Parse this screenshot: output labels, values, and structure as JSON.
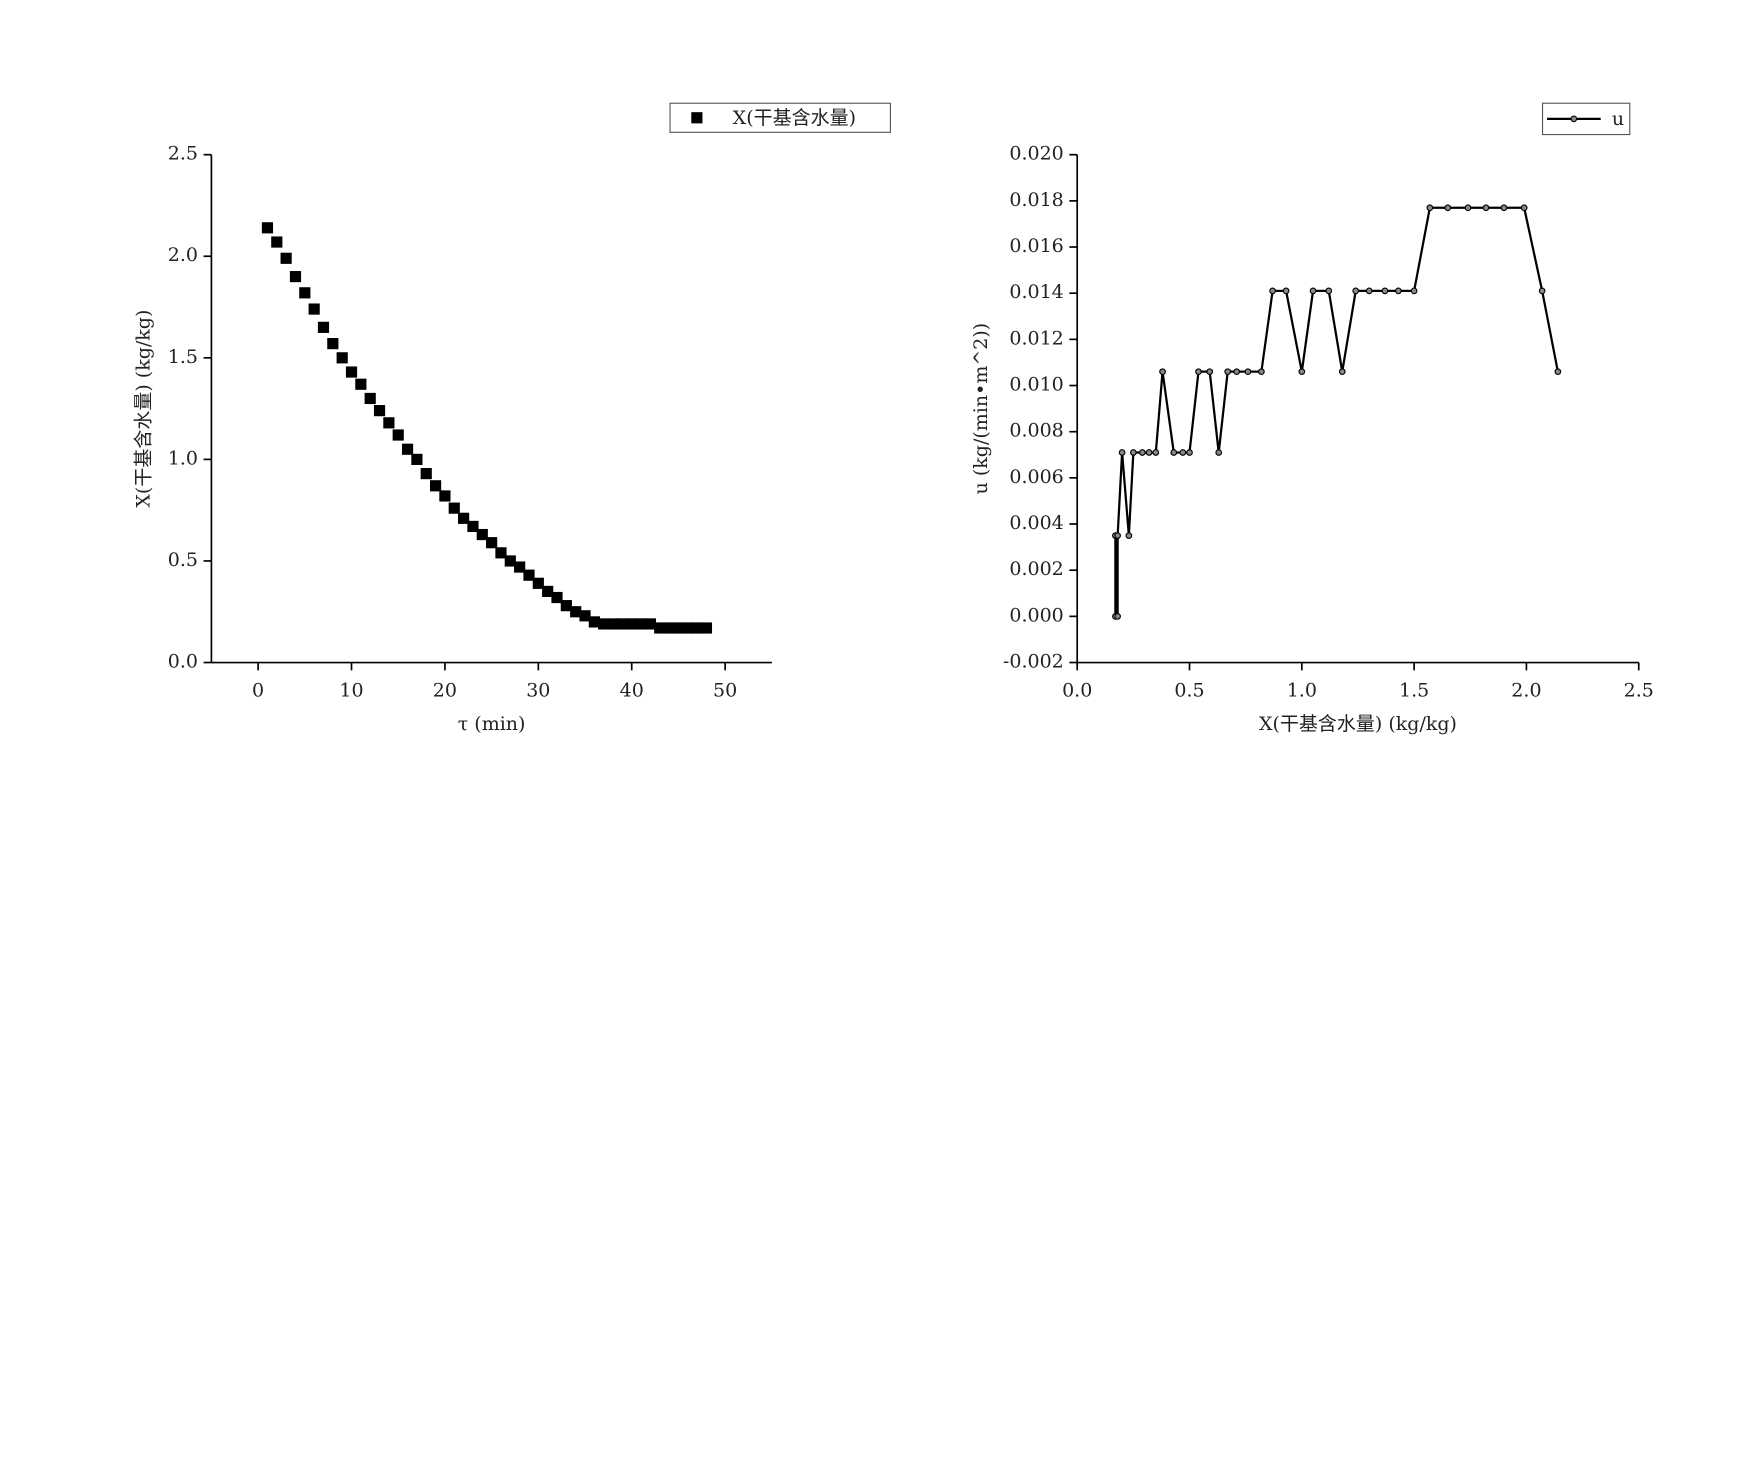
{
  "chart_data": [
    {
      "type": "scatter",
      "x_label": "τ (min)",
      "y_label": "X(干基含水量) (kg/kg)",
      "x": [
        1,
        2,
        3,
        4,
        5,
        6,
        7,
        8,
        9,
        10,
        11,
        12,
        13,
        14,
        15,
        16,
        17,
        18,
        19,
        20,
        21,
        22,
        23,
        24,
        25,
        26,
        27,
        28,
        29,
        30,
        31,
        32,
        33,
        34,
        35,
        36,
        37,
        38,
        39,
        40,
        41,
        42,
        43,
        44,
        45,
        46,
        47,
        48
      ],
      "series": [
        {
          "name": "X(干基含水量)",
          "color": "#000000",
          "values": [
            2.14,
            2.07,
            1.99,
            1.9,
            1.82,
            1.74,
            1.65,
            1.57,
            1.5,
            1.43,
            1.37,
            1.3,
            1.24,
            1.18,
            1.12,
            1.05,
            1.0,
            0.93,
            0.87,
            0.82,
            0.76,
            0.71,
            0.67,
            0.63,
            0.59,
            0.54,
            0.5,
            0.47,
            0.43,
            0.39,
            0.35,
            0.32,
            0.28,
            0.25,
            0.23,
            0.2,
            0.19,
            0.19,
            0.19,
            0.19,
            0.19,
            0.19,
            0.17,
            0.17,
            0.17,
            0.17,
            0.17,
            0.17
          ]
        }
      ],
      "xlim": [
        -5,
        55
      ],
      "xticks": [
        0,
        10,
        20,
        30,
        40,
        50
      ],
      "ylim": [
        0,
        2.5
      ],
      "yticks": [
        {
          "value": 0,
          "label": "0.0"
        },
        {
          "value": 0.5,
          "label": "0.5"
        },
        {
          "value": 1,
          "label": "1.0"
        },
        {
          "value": 1.5,
          "label": "1.5"
        },
        {
          "value": 2,
          "label": "2.0"
        },
        {
          "value": 2.5,
          "label": "2.5"
        }
      ]
    },
    {
      "type": "line",
      "x_label": "X(干基含水量) (kg/kg)",
      "y_label": "u (kg/(min•m^2))",
      "x": [
        0.17,
        0.17,
        0.18,
        0.18,
        0.2,
        0.23,
        0.25,
        0.29,
        0.32,
        0.35,
        0.38,
        0.43,
        0.47,
        0.5,
        0.54,
        0.59,
        0.63,
        0.67,
        0.71,
        0.76,
        0.82,
        0.87,
        0.93,
        1.0,
        1.05,
        1.12,
        1.18,
        1.24,
        1.3,
        1.37,
        1.43,
        1.5,
        1.57,
        1.65,
        1.74,
        1.82,
        1.9,
        1.99,
        2.07,
        2.14
      ],
      "series": [
        {
          "name": "u",
          "color": "#000000",
          "values": [
            0.0,
            0.0035,
            0.0,
            0.0035,
            0.0071,
            0.0035,
            0.0071,
            0.0071,
            0.0071,
            0.0071,
            0.0106,
            0.0071,
            0.0071,
            0.0071,
            0.0106,
            0.0106,
            0.0071,
            0.0106,
            0.0106,
            0.0106,
            0.0106,
            0.0141,
            0.0141,
            0.0106,
            0.0141,
            0.0141,
            0.0106,
            0.0141,
            0.0141,
            0.0141,
            0.0141,
            0.0141,
            0.0177,
            0.0177,
            0.0177,
            0.0177,
            0.0177,
            0.0177,
            0.0141,
            0.0106
          ]
        }
      ],
      "xlim": [
        0,
        2.5
      ],
      "xticks": [
        {
          "value": 0,
          "label": "0.0"
        },
        {
          "value": 0.5,
          "label": "0.5"
        },
        {
          "value": 1,
          "label": "1.0"
        },
        {
          "value": 1.5,
          "label": "1.5"
        },
        {
          "value": 2,
          "label": "2.0"
        },
        {
          "value": 2.5,
          "label": "2.5"
        }
      ],
      "ylim": [
        -0.002,
        0.02
      ],
      "yticks": [
        {
          "value": -0.002,
          "label": "-0.002"
        },
        {
          "value": 0,
          "label": "0.000"
        },
        {
          "value": 0.002,
          "label": "0.002"
        },
        {
          "value": 0.004,
          "label": "0.004"
        },
        {
          "value": 0.006,
          "label": "0.006"
        },
        {
          "value": 0.008,
          "label": "0.008"
        },
        {
          "value": 0.01,
          "label": "0.010"
        },
        {
          "value": 0.012,
          "label": "0.012"
        },
        {
          "value": 0.014,
          "label": "0.014"
        },
        {
          "value": 0.016,
          "label": "0.016"
        },
        {
          "value": 0.018,
          "label": "0.018"
        },
        {
          "value": 0.02,
          "label": "0.020"
        }
      ]
    }
  ]
}
